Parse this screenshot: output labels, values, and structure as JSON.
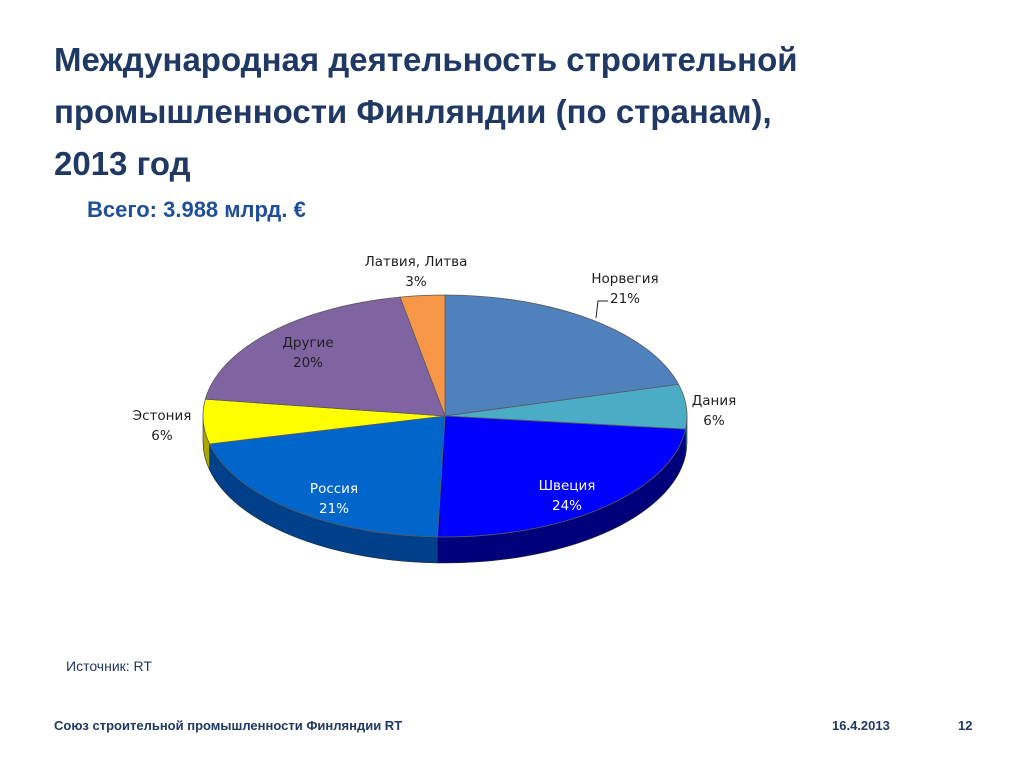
{
  "slide": {
    "title_lines": [
      "Международная деятельность строительной",
      "промышленности Финляндии (по странам),",
      "2013 год"
    ],
    "total": "Всего: 3.988 млрд. €",
    "source": "Источник: RT",
    "footer": {
      "organization": "Союз строительной промышленности Финляндии RT",
      "date": "16.4.2013",
      "page": "12"
    }
  },
  "chart_data": {
    "type": "pie",
    "style": "3d",
    "unit": "%",
    "slices": [
      {
        "label": "Норвегия",
        "value": 21,
        "display": "21%",
        "color": "#4f81bd",
        "side": "#39609a"
      },
      {
        "label": "Дания",
        "value": 6,
        "display": "6%",
        "color": "#4bacc6",
        "side": "#2f7f95"
      },
      {
        "label": "Швеция",
        "value": 24,
        "display": "24%",
        "color": "#0000ff",
        "side": "#00007a"
      },
      {
        "label": "Россия",
        "value": 21,
        "display": "21%",
        "color": "#0066cc",
        "side": "#00408a"
      },
      {
        "label": "Эстония",
        "value": 6,
        "display": "6%",
        "color": "#ffff00",
        "side": "#a8a800"
      },
      {
        "label": "Другие",
        "value": 20,
        "display": "20%",
        "color": "#8064a2",
        "side": "#5b4676"
      },
      {
        "label": "Латвия, Литва",
        "value": 3,
        "display": "3%",
        "color": "#f79646",
        "side": "#b8682a"
      }
    ]
  }
}
